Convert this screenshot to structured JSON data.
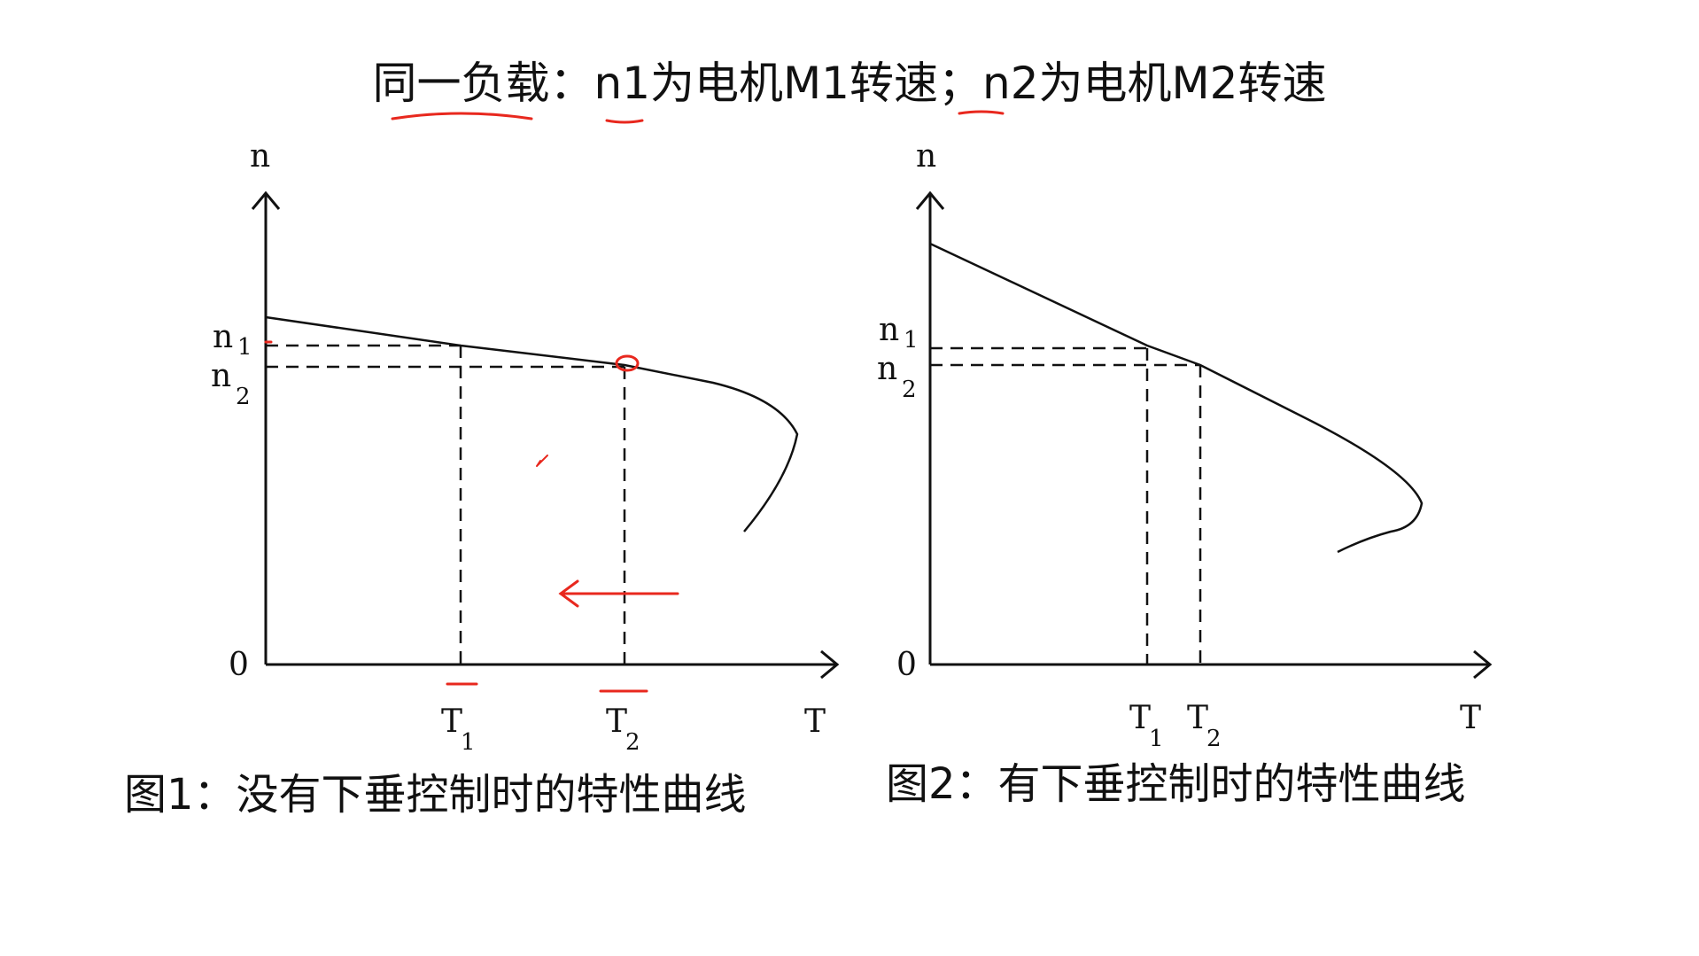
{
  "title": "同一负载：n1为电机M1转速；n2为电机M2转速",
  "colors": {
    "ink": "#111111",
    "annotation": "#e8281e",
    "background": "#ffffff"
  },
  "diagram1": {
    "caption": "图1：没有下垂控制时的特性曲线",
    "y_axis_label": "n",
    "x_axis_label": "T",
    "origin_label": "0",
    "n1_label": "n",
    "n1_sub": "1",
    "n2_label": "n",
    "n2_sub": "2",
    "t1_label": "T",
    "t1_sub": "1",
    "t2_label": "T",
    "t2_sub": "2"
  },
  "diagram2": {
    "caption": "图2：有下垂控制时的特性曲线",
    "y_axis_label": "n",
    "x_axis_label": "T",
    "origin_label": "0",
    "n1_label": "n",
    "n1_sub": "1",
    "n2_label": "n",
    "n2_sub": "2",
    "t1_label": "T",
    "t1_sub": "1",
    "t2_label": "T",
    "t2_sub": "2"
  }
}
